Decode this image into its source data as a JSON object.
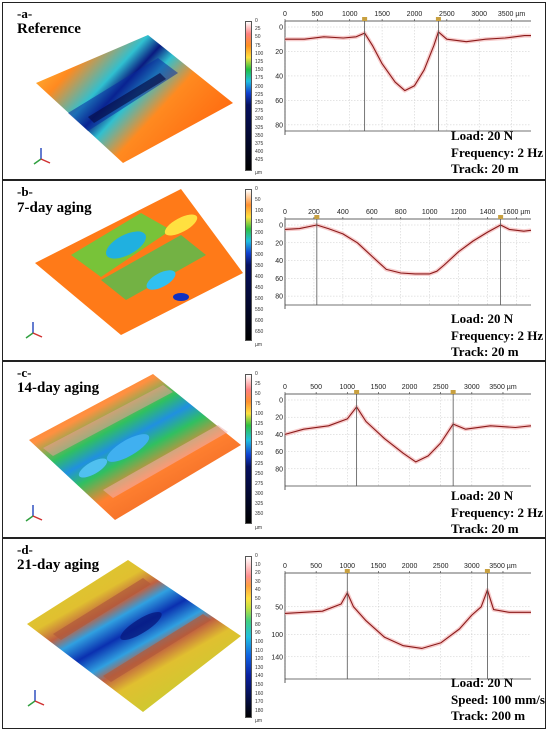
{
  "panels": [
    {
      "tag": "-a-",
      "title": "Reference",
      "conditions": [
        "Load: 20 N",
        "Frequency: 2 Hz",
        "Track: 20 m"
      ],
      "colorbar": {
        "ticks": [
          "0",
          "25",
          "50",
          "75",
          "100",
          "125",
          "150",
          "175",
          "200",
          "225",
          "250",
          "275",
          "300",
          "325",
          "350",
          "375",
          "400",
          "425"
        ],
        "unit": "µm"
      }
    },
    {
      "tag": "-b-",
      "title": "7-day aging",
      "conditions": [
        "Load: 20 N",
        "Frequency: 2 Hz",
        "Track: 20 m"
      ],
      "colorbar": {
        "ticks": [
          "0",
          "50",
          "100",
          "150",
          "200",
          "250",
          "300",
          "350",
          "400",
          "450",
          "500",
          "550",
          "600",
          "650"
        ],
        "unit": "µm"
      }
    },
    {
      "tag": "-c-",
      "title": "14-day aging",
      "conditions": [
        "Load: 20 N",
        "Frequency: 2 Hz",
        "Track: 20 m"
      ],
      "colorbar": {
        "ticks": [
          "0",
          "25",
          "50",
          "75",
          "100",
          "125",
          "150",
          "175",
          "200",
          "225",
          "250",
          "275",
          "300",
          "325",
          "350"
        ],
        "unit": "µm"
      }
    },
    {
      "tag": "-d-",
      "title": "21-day aging",
      "conditions": [
        "Load: 20 N",
        "Speed: 100 mm/s",
        "Track: 200 m"
      ],
      "colorbar": {
        "ticks": [
          "0",
          "10",
          "20",
          "30",
          "40",
          "50",
          "60",
          "70",
          "80",
          "90",
          "100",
          "110",
          "120",
          "130",
          "140",
          "150",
          "160",
          "170",
          "180"
        ],
        "unit": "µm"
      }
    }
  ],
  "colors": {
    "profile_line": "#8b1a1a",
    "profile_fill": "#f4b6b6",
    "marker": "#c8a040",
    "frame": "#222222"
  },
  "chart_data": [
    {
      "type": "line",
      "panel": "a",
      "xlabel": "µm",
      "xlim": [
        0,
        3800
      ],
      "ylim": [
        85,
        0
      ],
      "xticks": [
        "0",
        "500",
        "1000",
        "1500",
        "2000",
        "2500",
        "3000",
        "3500 µm"
      ],
      "yticks": [
        "0",
        "20",
        "40",
        "60",
        "80"
      ],
      "markers_x": [
        1230,
        2370
      ],
      "series": [
        {
          "x": [
            0,
            300,
            600,
            900,
            1100,
            1230,
            1350,
            1500,
            1700,
            1850,
            2000,
            2150,
            2300,
            2370,
            2500,
            2800,
            3100,
            3400,
            3700,
            3800
          ],
          "y": [
            10,
            10,
            8,
            9,
            8,
            5,
            15,
            30,
            45,
            52,
            48,
            35,
            15,
            4,
            10,
            12,
            10,
            9,
            7,
            7
          ]
        }
      ]
    },
    {
      "type": "line",
      "panel": "b",
      "xlabel": "µm",
      "xlim": [
        0,
        1700
      ],
      "ylim": [
        90,
        0
      ],
      "xticks": [
        "0",
        "200",
        "400",
        "600",
        "800",
        "1000",
        "1200",
        "1400",
        "1600 µm"
      ],
      "yticks": [
        "0",
        "20",
        "40",
        "60",
        "80"
      ],
      "markers_x": [
        220,
        1490
      ],
      "series": [
        {
          "x": [
            0,
            100,
            220,
            300,
            400,
            500,
            600,
            700,
            800,
            900,
            1000,
            1050,
            1100,
            1200,
            1300,
            1400,
            1490,
            1550,
            1650,
            1700
          ],
          "y": [
            5,
            4,
            0,
            4,
            10,
            20,
            35,
            50,
            54,
            55,
            55,
            52,
            45,
            30,
            18,
            8,
            0,
            5,
            7,
            6
          ]
        }
      ]
    },
    {
      "type": "line",
      "panel": "c",
      "xlabel": "µm",
      "xlim": [
        0,
        3950
      ],
      "ylim": [
        100,
        0
      ],
      "xticks": [
        "0",
        "500",
        "1000",
        "1500",
        "2000",
        "2500",
        "3000",
        "3500 µm"
      ],
      "yticks": [
        "0",
        "20",
        "40",
        "60",
        "80"
      ],
      "markers_x": [
        1150,
        2700
      ],
      "series": [
        {
          "x": [
            0,
            300,
            700,
            1000,
            1150,
            1300,
            1600,
            1900,
            2100,
            2300,
            2500,
            2700,
            2900,
            3300,
            3700,
            3950
          ],
          "y": [
            40,
            34,
            30,
            22,
            8,
            25,
            45,
            62,
            72,
            65,
            50,
            28,
            34,
            30,
            32,
            30
          ]
        }
      ]
    },
    {
      "type": "line",
      "panel": "d",
      "xlabel": "µm",
      "xlim": [
        0,
        3950
      ],
      "ylim": [
        180,
        0
      ],
      "xticks": [
        "0",
        "500",
        "1000",
        "1500",
        "2000",
        "2500",
        "3000",
        "3500 µm"
      ],
      "yticks": [
        "50",
        "100",
        "140"
      ],
      "markers_x": [
        1000,
        3250
      ],
      "series": [
        {
          "x": [
            0,
            300,
            600,
            900,
            1000,
            1100,
            1300,
            1600,
            1900,
            2200,
            2500,
            2800,
            3000,
            3150,
            3250,
            3350,
            3600,
            3950
          ],
          "y": [
            62,
            60,
            58,
            45,
            25,
            50,
            75,
            105,
            120,
            125,
            115,
            90,
            65,
            50,
            20,
            55,
            60,
            60
          ]
        }
      ]
    }
  ]
}
